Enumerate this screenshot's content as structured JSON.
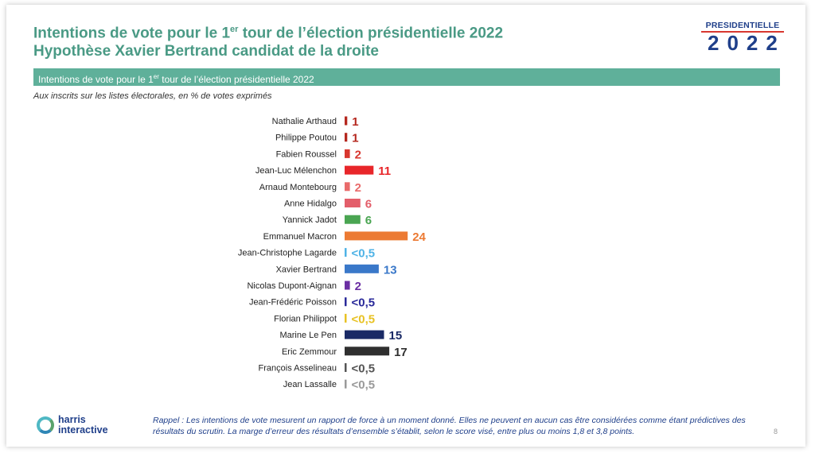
{
  "header": {
    "title_line1_pre": "Intentions de vote pour le 1",
    "title_line1_sup": "er",
    "title_line1_post": " tour de l’élection présidentielle 2022",
    "title_line2": "Hypothèse Xavier Bertrand candidat de la droite"
  },
  "logo": {
    "word": "PRESIDENTIELLE",
    "year": "2022"
  },
  "banner": {
    "pre": "Intentions de vote pour le 1",
    "sup": "er",
    "post": " tour de l’élection présidentielle 2022"
  },
  "subtitle": "Aux inscrits sur les listes électorales, en % de votes exprimés",
  "footer": {
    "note": "Rappel : Les intentions de vote mesurent un rapport de force à un moment donné. Elles ne peuvent en aucun cas être considérées comme étant prédictives des résultats du scrutin. La marge d’erreur des résultats d’ensemble s’établit, selon le score visé, entre plus ou moins 1,8 et 3,8 points.",
    "page": "8",
    "brand_line1": "harris",
    "brand_line2": "interactive"
  },
  "chart_data": {
    "type": "bar",
    "orientation": "horizontal",
    "categories": [
      "Nathalie Arthaud",
      "Philippe Poutou",
      "Fabien Roussel",
      "Jean-Luc Mélenchon",
      "Arnaud Montebourg",
      "Anne Hidalgo",
      "Yannick Jadot",
      "Emmanuel Macron",
      "Jean-Christophe Lagarde",
      "Xavier Bertrand",
      "Nicolas Dupont-Aignan",
      "Jean-Frédéric Poisson",
      "Florian Philippot",
      "Marine Le Pen",
      "Eric Zemmour",
      "François Asselineau",
      "Jean Lassalle"
    ],
    "values": [
      1,
      1,
      2,
      11,
      2,
      6,
      6,
      24,
      0.5,
      13,
      2,
      0.5,
      0.5,
      15,
      17,
      0.5,
      0.5
    ],
    "labels": [
      "1",
      "1",
      "2",
      "11",
      "2",
      "6",
      "6",
      "24",
      "<0,5",
      "13",
      "2",
      "<0,5",
      "<0,5",
      "15",
      "17",
      "<0,5",
      "<0,5"
    ],
    "colors": [
      "#b5281f",
      "#b5281f",
      "#d8372f",
      "#e8262a",
      "#e96b6b",
      "#e35e6a",
      "#4aa552",
      "#ec7a33",
      "#4fb3e6",
      "#3a78c9",
      "#6b2fa3",
      "#2a2a9a",
      "#e8c224",
      "#1a2a66",
      "#2f2f2f",
      "#555555",
      "#9a9a9a"
    ]
  }
}
